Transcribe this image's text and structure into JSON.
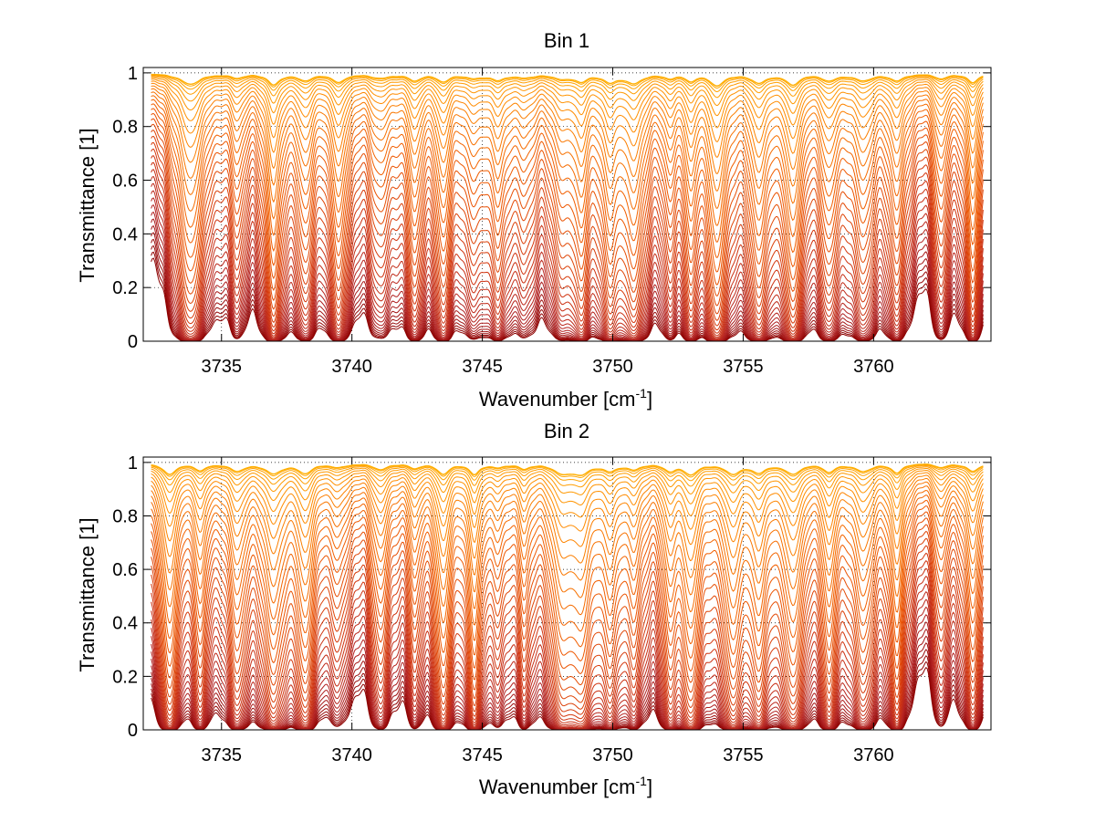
{
  "chart_data": [
    {
      "type": "line",
      "title": "Bin 1",
      "xlabel": "Wavenumber [cm",
      "xlabel_sup": "-1",
      "xlabel_end": "]",
      "ylabel": "Transmittance [1]",
      "xlim": [
        3732,
        3764.5
      ],
      "ylim": [
        0,
        1.02
      ],
      "xticks": [
        "3735",
        "3740",
        "3745",
        "3750",
        "3755",
        "3760"
      ],
      "yticks": [
        "0",
        "0.2",
        "0.4",
        "0.6",
        "0.8",
        "1"
      ],
      "grid": true,
      "n_series": 40,
      "colormap": [
        "#8b0000",
        "#b22222",
        "#d2360f",
        "#f05a00",
        "#ff8c00",
        "#ffb000"
      ],
      "absorption_lines_cm1": [
        3733.8,
        3735.6,
        3737.0,
        3738.2,
        3739.5,
        3741.1,
        3742.4,
        3743.5,
        3744.7,
        3745.6,
        3746.6,
        3748.1,
        3748.8,
        3749.9,
        3750.8,
        3752.2,
        3753.0,
        3754.0,
        3755.6,
        3756.9,
        3758.3,
        3759.6,
        3760.9,
        3762.6,
        3763.8
      ]
    },
    {
      "type": "line",
      "title": "Bin 2",
      "xlabel": "Wavenumber [cm",
      "xlabel_sup": "-1",
      "xlabel_end": "]",
      "ylabel": "Transmittance [1]",
      "xlim": [
        3732,
        3764.5
      ],
      "ylim": [
        0,
        1.02
      ],
      "xticks": [
        "3735",
        "3740",
        "3745",
        "3750",
        "3755",
        "3760"
      ],
      "yticks": [
        "0",
        "0.2",
        "0.4",
        "0.6",
        "0.8",
        "1"
      ],
      "grid": true,
      "n_series": 40,
      "colormap": [
        "#8b0000",
        "#b22222",
        "#d2360f",
        "#f05a00",
        "#ff8c00",
        "#ffb000"
      ],
      "absorption_lines_cm1": [
        3733.0,
        3734.2,
        3735.6,
        3737.0,
        3738.2,
        3739.5,
        3741.1,
        3742.4,
        3743.5,
        3744.7,
        3745.6,
        3746.6,
        3748.1,
        3748.8,
        3749.9,
        3750.8,
        3752.2,
        3753.0,
        3754.6,
        3755.6,
        3756.9,
        3758.3,
        3759.6,
        3760.9,
        3762.6,
        3763.8
      ]
    }
  ]
}
